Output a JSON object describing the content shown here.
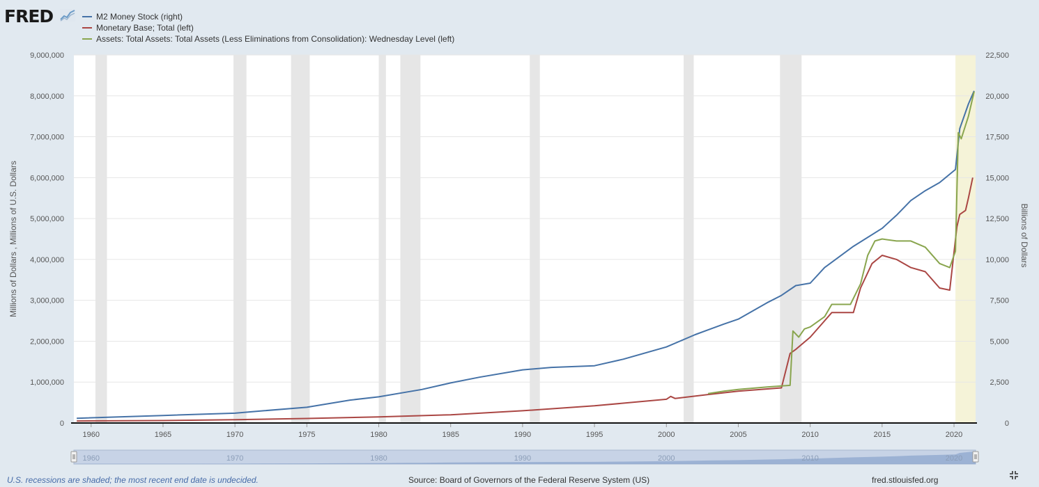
{
  "header": {
    "logo_text": "FRED",
    "logo_mark": "chart-line-icon"
  },
  "legend": [
    {
      "label": "M2 Money Stock (right)",
      "color": "#4572a7"
    },
    {
      "label": "Monetary Base; Total (left)",
      "color": "#aa4643"
    },
    {
      "label": "Assets: Total Assets: Total Assets (Less Eliminations from Consolidation): Wednesday Level (left)",
      "color": "#89a54e"
    }
  ],
  "footer": {
    "note": "U.S. recessions are shaded; the most recent end date is undecided.",
    "source": "Source: Board of Governors of the Federal Reserve System (US)",
    "url": "fred.stlouisfed.org"
  },
  "chart_data": {
    "type": "line",
    "title": "",
    "xlabel": "",
    "ylabel_left": "Millions of Dollars , Millions of U.S. Dollars",
    "ylabel_right": "Billions of Dollars",
    "xlim": [
      1958.8,
      2021.5
    ],
    "ylim_left": [
      0,
      9000000
    ],
    "ylim_right": [
      0,
      22500
    ],
    "x_ticks": [
      "1960",
      "1965",
      "1970",
      "1975",
      "1980",
      "1985",
      "1990",
      "1995",
      "2000",
      "2005",
      "2010",
      "2015",
      "2020"
    ],
    "y_ticks_left": [
      "0",
      "1,000,000",
      "2,000,000",
      "3,000,000",
      "4,000,000",
      "5,000,000",
      "6,000,000",
      "7,000,000",
      "8,000,000",
      "9,000,000"
    ],
    "y_ticks_right": [
      "0",
      "2,500",
      "5,000",
      "7,500",
      "10,000",
      "12,500",
      "15,000",
      "17,500",
      "20,000",
      "22,500"
    ],
    "grid": true,
    "legend_position": "top-left",
    "recessions": [
      [
        1960.3,
        1961.1
      ],
      [
        1969.9,
        1970.8
      ],
      [
        1973.9,
        1975.2
      ],
      [
        1980.0,
        1980.5
      ],
      [
        1981.5,
        1982.9
      ],
      [
        1990.5,
        1991.2
      ],
      [
        2001.2,
        2001.9
      ],
      [
        2007.9,
        2009.4
      ],
      [
        2020.1,
        2021.5
      ]
    ],
    "series": [
      {
        "name": "M2 Money Stock (right)",
        "axis": "right",
        "color": "#4572a7",
        "points": [
          [
            1959,
            290
          ],
          [
            1965,
            460
          ],
          [
            1970,
            600
          ],
          [
            1972,
            750
          ],
          [
            1975,
            960
          ],
          [
            1978,
            1400
          ],
          [
            1980,
            1600
          ],
          [
            1982,
            1900
          ],
          [
            1983,
            2050
          ],
          [
            1985,
            2450
          ],
          [
            1987,
            2800
          ],
          [
            1990,
            3250
          ],
          [
            1992,
            3400
          ],
          [
            1995,
            3500
          ],
          [
            1997,
            3900
          ],
          [
            2000,
            4650
          ],
          [
            2002,
            5400
          ],
          [
            2004,
            6050
          ],
          [
            2005,
            6350
          ],
          [
            2007,
            7350
          ],
          [
            2008,
            7800
          ],
          [
            2009,
            8400
          ],
          [
            2010,
            8550
          ],
          [
            2011,
            9500
          ],
          [
            2013,
            10800
          ],
          [
            2015,
            11900
          ],
          [
            2016,
            12700
          ],
          [
            2017,
            13600
          ],
          [
            2018,
            14200
          ],
          [
            2019,
            14700
          ],
          [
            2020.1,
            15500
          ],
          [
            2020.4,
            18000
          ],
          [
            2021,
            19500
          ],
          [
            2021.4,
            20300
          ]
        ]
      },
      {
        "name": "Monetary Base; Total (left)",
        "axis": "left",
        "color": "#aa4643",
        "points": [
          [
            1959,
            50000
          ],
          [
            1965,
            60000
          ],
          [
            1970,
            80000
          ],
          [
            1975,
            110000
          ],
          [
            1980,
            150000
          ],
          [
            1985,
            200000
          ],
          [
            1990,
            300000
          ],
          [
            1995,
            420000
          ],
          [
            2000,
            580000
          ],
          [
            2000.3,
            650000
          ],
          [
            2000.6,
            600000
          ],
          [
            2003,
            700000
          ],
          [
            2005,
            780000
          ],
          [
            2008,
            860000
          ],
          [
            2008.6,
            1700000
          ],
          [
            2009,
            1800000
          ],
          [
            2010,
            2100000
          ],
          [
            2011,
            2500000
          ],
          [
            2011.5,
            2700000
          ],
          [
            2013,
            2700000
          ],
          [
            2013.5,
            3300000
          ],
          [
            2014.3,
            3900000
          ],
          [
            2015,
            4100000
          ],
          [
            2016,
            4000000
          ],
          [
            2017,
            3800000
          ],
          [
            2018,
            3700000
          ],
          [
            2019,
            3300000
          ],
          [
            2019.7,
            3250000
          ],
          [
            2020.2,
            4800000
          ],
          [
            2020.4,
            5100000
          ],
          [
            2020.8,
            5200000
          ],
          [
            2021,
            5500000
          ],
          [
            2021.3,
            6000000
          ]
        ]
      },
      {
        "name": "Assets: Total Assets: Total Assets (Less Eliminations from Consolidation): Wednesday Level (left)",
        "axis": "left",
        "color": "#89a54e",
        "points": [
          [
            2002.9,
            720000
          ],
          [
            2004,
            780000
          ],
          [
            2005,
            820000
          ],
          [
            2007,
            880000
          ],
          [
            2008.6,
            920000
          ],
          [
            2008.8,
            2250000
          ],
          [
            2009.2,
            2100000
          ],
          [
            2009.6,
            2300000
          ],
          [
            2010,
            2350000
          ],
          [
            2011,
            2600000
          ],
          [
            2011.5,
            2900000
          ],
          [
            2012,
            2900000
          ],
          [
            2012.8,
            2900000
          ],
          [
            2013.5,
            3400000
          ],
          [
            2014,
            4100000
          ],
          [
            2014.5,
            4450000
          ],
          [
            2015,
            4500000
          ],
          [
            2016,
            4450000
          ],
          [
            2017,
            4450000
          ],
          [
            2018,
            4300000
          ],
          [
            2019,
            3900000
          ],
          [
            2019.7,
            3800000
          ],
          [
            2020.1,
            4200000
          ],
          [
            2020.3,
            7100000
          ],
          [
            2020.5,
            6950000
          ],
          [
            2021,
            7500000
          ],
          [
            2021.4,
            8100000
          ]
        ]
      }
    ]
  },
  "navigator": {
    "labels": [
      "1960",
      "1970",
      "1980",
      "1990",
      "2000",
      "2010",
      "2020"
    ]
  }
}
